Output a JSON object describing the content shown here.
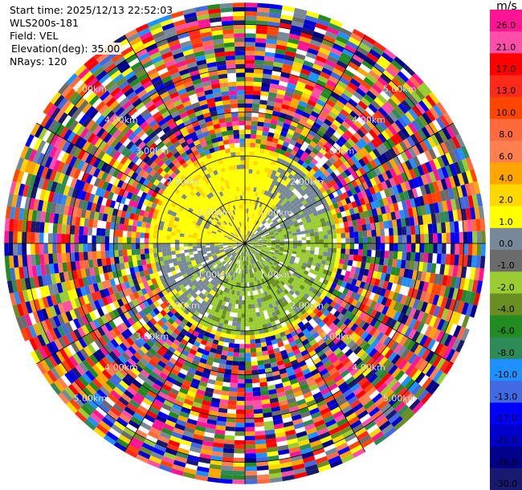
{
  "header": {
    "start_time": "Start time: 2025/12/13 22:52:03",
    "station": "WLS200s-181",
    "field": "Field: VEL",
    "elevation": "Elevation(deg): 35.00",
    "nrays": "NRays: 120"
  },
  "colorbar": {
    "unit": "m/s",
    "ticks": [
      "26.0",
      "21.0",
      "17.0",
      "13.0",
      "10.0",
      "8.0",
      "6.0",
      "4.0",
      "2.0",
      "1.0",
      "0.0",
      "-1.0",
      "-2.0",
      "-4.0",
      "-6.0",
      "-8.0",
      "-10.0",
      "-13.0",
      "-17.0",
      "-21.0",
      "-26.0",
      "-30.0"
    ],
    "colors": [
      "#ff1493",
      "#ff4fa8",
      "#ff0000",
      "#ff2a1a",
      "#ff4500",
      "#ff6a3c",
      "#ff7f50",
      "#ffa500",
      "#ffd700",
      "#ffff00",
      "#778899",
      "#6b6b6b",
      "#9acd32",
      "#6b8e23",
      "#228b22",
      "#2e8b57",
      "#1e90ff",
      "#4169e1",
      "#0000ff",
      "#0000cd",
      "#00008b",
      "#191970"
    ]
  },
  "chart_data": {
    "type": "heatmap",
    "subtype": "polar-ppi",
    "field": "VEL",
    "units": "m/s",
    "nrays": 120,
    "elevation_deg": 35.0,
    "range_rings_km": [
      1,
      2,
      3,
      4,
      5
    ],
    "range_ring_labels": [
      "1.00km",
      "2.00km",
      "3.00km",
      "4.00km",
      "5.00km"
    ],
    "max_range_km": 5.5,
    "azimuth_spokes": 12,
    "value_range": [
      -30,
      26
    ],
    "center_region_km": 2.2,
    "center_pattern": "yellow (+1 to +4 m/s) to north-west, green (-1 to -2 m/s) to south and east, grey (~0 m/s) elsewhere",
    "outer_pattern": "noisy multicolour values beyond ~2.2 km"
  }
}
